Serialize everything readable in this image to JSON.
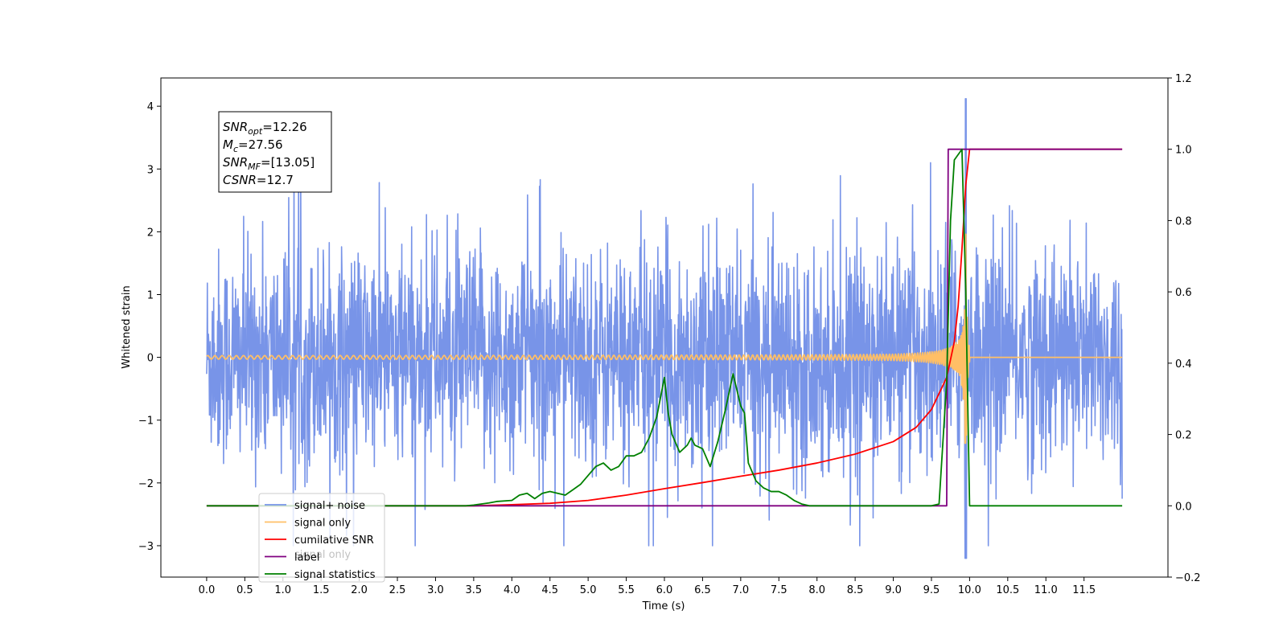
{
  "chart_data": {
    "type": "line",
    "xlabel": "Time (s)",
    "ylabel": "Whitened strain",
    "xlim": [
      -0.6,
      12.6
    ],
    "ylim": [
      -3.5,
      4.45
    ],
    "y2lim": [
      -0.2,
      1.2
    ],
    "x_ticks": [
      "0.0",
      "0.5",
      "1.0",
      "1.5",
      "2.0",
      "2.5",
      "3.0",
      "3.5",
      "4.0",
      "4.5",
      "5.0",
      "5.5",
      "6.0",
      "6.5",
      "7.0",
      "7.5",
      "8.0",
      "8.5",
      "9.0",
      "9.5",
      "10.0",
      "10.5",
      "11.0",
      "11.5"
    ],
    "y_ticks": [
      "4",
      "3",
      "2",
      "1",
      "0",
      "−1",
      "−2",
      "−3"
    ],
    "y2_ticks": [
      "1.2",
      "1.0",
      "0.8",
      "0.6",
      "0.4",
      "0.2",
      "0.0",
      "−0.2"
    ],
    "annotation": {
      "lines": [
        {
          "base": "SNR",
          "sub": "opt",
          "rest": "=12.26"
        },
        {
          "base": "M",
          "sub": "c",
          "rest": "=27.56"
        },
        {
          "base": "SNR",
          "sub": "MF",
          "rest": "=[13.05]"
        },
        {
          "base": "CSNR",
          "sub": "",
          "rest": "=12.7"
        }
      ]
    },
    "legend": {
      "placement": "lower-left",
      "entries": [
        {
          "label": "signal+ noise",
          "color": "#7894e8"
        },
        {
          "label": "signal only",
          "color": "#ffbf66"
        },
        {
          "label": "cumilative SNR",
          "color": "#ff0000"
        },
        {
          "label": "label",
          "color": "#800080"
        },
        {
          "label": "signal statistics",
          "color": "#008000"
        }
      ],
      "hidden_text": "signal only"
    },
    "series": [
      {
        "name": "signal+ noise",
        "axis": "left",
        "color": "#7894e8",
        "x_range": [
          0.0,
          12.0
        ],
        "noise_sigma": 0.85,
        "spike_max": 4.12,
        "spike_min": -3.2,
        "spike_x": 9.95
      },
      {
        "name": "signal only",
        "axis": "left",
        "color": "#ffbf66",
        "x_range": [
          0.0,
          12.0
        ],
        "merger_x": 9.95,
        "peak_amplitude": 2.3
      },
      {
        "name": "cumilative SNR",
        "axis": "right",
        "color": "#ff0000",
        "x": [
          0.0,
          3.5,
          4.0,
          4.5,
          5.0,
          5.5,
          6.0,
          6.5,
          7.0,
          7.5,
          8.0,
          8.5,
          9.0,
          9.3,
          9.5,
          9.7,
          9.8,
          9.85,
          9.9,
          9.95,
          10.0,
          12.0
        ],
        "y": [
          0.0,
          0.0,
          0.003,
          0.007,
          0.015,
          0.03,
          0.048,
          0.065,
          0.083,
          0.1,
          0.12,
          0.145,
          0.18,
          0.22,
          0.27,
          0.36,
          0.46,
          0.56,
          0.72,
          0.9,
          1.0,
          1.0
        ]
      },
      {
        "name": "label",
        "axis": "right",
        "color": "#800080",
        "x": [
          0.0,
          9.7,
          9.72,
          9.99,
          10.0,
          12.0
        ],
        "y": [
          0.0,
          0.0,
          1.0,
          1.0,
          1.0,
          1.0
        ]
      },
      {
        "name": "signal statistics",
        "axis": "right",
        "color": "#008000",
        "x": [
          0.0,
          3.4,
          3.5,
          3.7,
          3.8,
          4.0,
          4.1,
          4.2,
          4.3,
          4.4,
          4.5,
          4.6,
          4.7,
          4.8,
          4.9,
          5.0,
          5.1,
          5.2,
          5.3,
          5.4,
          5.5,
          5.6,
          5.7,
          5.8,
          5.9,
          6.0,
          6.05,
          6.1,
          6.2,
          6.3,
          6.35,
          6.4,
          6.5,
          6.6,
          6.7,
          6.8,
          6.9,
          7.0,
          7.05,
          7.1,
          7.2,
          7.3,
          7.4,
          7.5,
          7.6,
          7.7,
          7.8,
          7.9,
          9.5,
          9.6,
          9.7,
          9.75,
          9.8,
          9.9,
          9.95,
          10.0,
          12.0
        ],
        "y": [
          0.0,
          0.0,
          0.002,
          0.008,
          0.012,
          0.015,
          0.03,
          0.035,
          0.02,
          0.035,
          0.04,
          0.035,
          0.03,
          0.045,
          0.06,
          0.085,
          0.11,
          0.12,
          0.1,
          0.11,
          0.14,
          0.14,
          0.15,
          0.19,
          0.25,
          0.36,
          0.26,
          0.2,
          0.15,
          0.17,
          0.19,
          0.17,
          0.16,
          0.11,
          0.18,
          0.27,
          0.37,
          0.28,
          0.26,
          0.12,
          0.07,
          0.05,
          0.04,
          0.04,
          0.03,
          0.015,
          0.005,
          0.0,
          0.0,
          0.005,
          0.35,
          0.8,
          0.97,
          1.0,
          0.6,
          0.0,
          0.0
        ]
      }
    ]
  }
}
